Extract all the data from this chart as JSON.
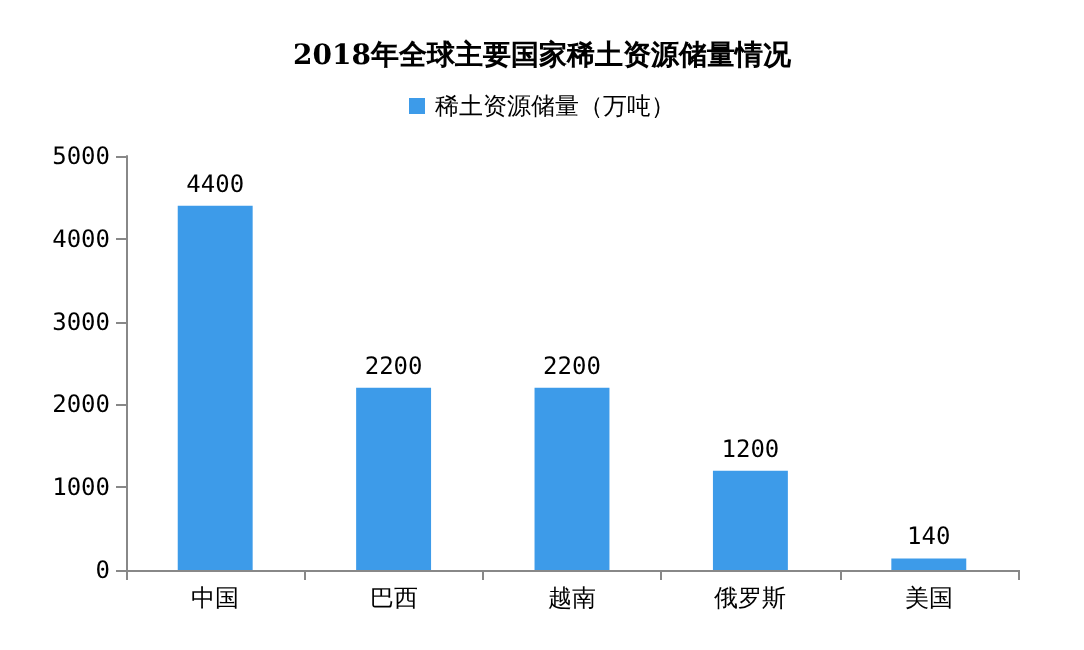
{
  "chart_data": {
    "type": "bar",
    "title": "2018年全球主要国家稀土资源储量情况",
    "categories": [
      "中国",
      "巴西",
      "越南",
      "俄罗斯",
      "美国"
    ],
    "series": [
      {
        "name": "稀土资源储量（万吨）",
        "color": "#3d9be9",
        "values": [
          4400,
          2200,
          2200,
          1200,
          140
        ]
      }
    ],
    "ylim": [
      0,
      5000
    ],
    "yticks": [
      0,
      1000,
      2000,
      3000,
      4000,
      5000
    ],
    "grid": false,
    "legend": "top",
    "data_labels": true
  }
}
